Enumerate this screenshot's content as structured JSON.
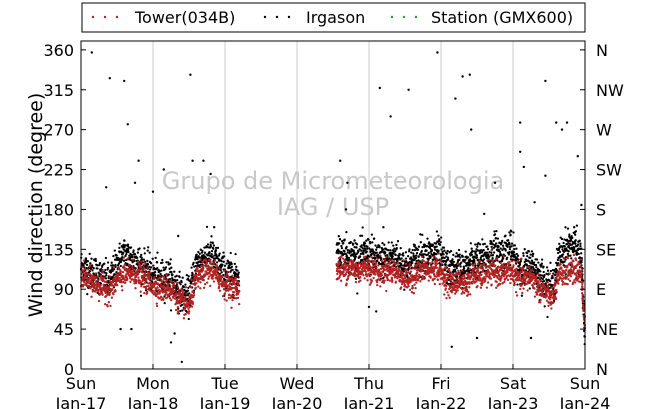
{
  "chart_data": {
    "type": "scatter",
    "title": "",
    "ylabel": "Wind direction (degree)",
    "xlabel": "",
    "ylim": [
      0,
      370
    ],
    "xlim_days": [
      0,
      7
    ],
    "grid": "vertical lines at each day",
    "legend_position": "top",
    "watermark": [
      "Grupo de Micrometeorologia",
      "IAG / USP"
    ],
    "x_ticks": [
      {
        "day": 0,
        "top": "Sun",
        "bottom": "Jan-17"
      },
      {
        "day": 1,
        "top": "Mon",
        "bottom": "Jan-18"
      },
      {
        "day": 2,
        "top": "Tue",
        "bottom": "Jan-19"
      },
      {
        "day": 3,
        "top": "Wed",
        "bottom": "Jan-20"
      },
      {
        "day": 4,
        "top": "Thu",
        "bottom": "Jan-21"
      },
      {
        "day": 5,
        "top": "Fri",
        "bottom": "Jan-22"
      },
      {
        "day": 6,
        "top": "Sat",
        "bottom": "Jan-23"
      },
      {
        "day": 7,
        "top": "Sun",
        "bottom": "Jan-24"
      }
    ],
    "y_ticks": [
      "0",
      "45",
      "90",
      "135",
      "180",
      "225",
      "270",
      "315",
      "360"
    ],
    "y_tick_values": [
      0,
      45,
      90,
      135,
      180,
      225,
      270,
      315,
      360
    ],
    "compass_ticks": [
      "N",
      "NE",
      "E",
      "SE",
      "S",
      "SW",
      "W",
      "NW",
      "N"
    ],
    "series": [
      {
        "name": "Tower(034B)",
        "color": "#b22222",
        "segments": [
          {
            "x_days": [
              0.0,
              0.1,
              0.2,
              0.3,
              0.4,
              0.5,
              0.6,
              0.7,
              0.8,
              0.9,
              1.0,
              1.1,
              1.2,
              1.3,
              1.4,
              1.5,
              1.6,
              1.7,
              1.8,
              1.9,
              2.0,
              2.1,
              2.2
            ],
            "y": [
              106,
              100,
              96,
              92,
              88,
              100,
              105,
              108,
              106,
              100,
              95,
              90,
              92,
              85,
              75,
              70,
              100,
              108,
              112,
              104,
              95,
              92,
              90
            ]
          },
          {
            "x_days": [
              3.55,
              3.65,
              3.75,
              3.85,
              3.95,
              4.05,
              4.15,
              4.25,
              4.35,
              4.45,
              4.55,
              4.65,
              4.75,
              4.85,
              4.95,
              5.05,
              5.15,
              5.25,
              5.35,
              5.45,
              5.55,
              5.65,
              5.75,
              5.85,
              5.95,
              6.05,
              6.15,
              6.25,
              6.35,
              6.45,
              6.55,
              6.65,
              6.75,
              6.85,
              6.95,
              7.0
            ],
            "y": [
              113,
              112,
              114,
              110,
              115,
              112,
              108,
              112,
              110,
              105,
              100,
              106,
              112,
              110,
              114,
              103,
              95,
              100,
              95,
              106,
              104,
              108,
              110,
              106,
              112,
              104,
              100,
              105,
              92,
              86,
              80,
              105,
              110,
              112,
              108,
              45
            ]
          }
        ]
      },
      {
        "name": "Irgason",
        "color": "#000000",
        "segments": [
          {
            "x_days": [
              0.0,
              0.1,
              0.2,
              0.3,
              0.4,
              0.5,
              0.6,
              0.7,
              0.8,
              0.9,
              1.0,
              1.1,
              1.2,
              1.3,
              1.4,
              1.5,
              1.6,
              1.7,
              1.8,
              1.9,
              2.0,
              2.1,
              2.2
            ],
            "y": [
              116,
              110,
              108,
              102,
              98,
              118,
              130,
              125,
              120,
              112,
              106,
              102,
              104,
              96,
              84,
              82,
              118,
              125,
              130,
              118,
              108,
              106,
              105
            ]
          },
          {
            "x_days": [
              3.55,
              3.65,
              3.75,
              3.85,
              3.95,
              4.05,
              4.15,
              4.25,
              4.35,
              4.45,
              4.55,
              4.65,
              4.75,
              4.85,
              4.95,
              5.05,
              5.15,
              5.25,
              5.35,
              5.45,
              5.55,
              5.65,
              5.75,
              5.85,
              5.95,
              6.05,
              6.15,
              6.25,
              6.35,
              6.45,
              6.55,
              6.65,
              6.75,
              6.85,
              6.95,
              7.0
            ],
            "y": [
              130,
              132,
              128,
              125,
              130,
              128,
              122,
              125,
              126,
              120,
              115,
              125,
              130,
              128,
              132,
              118,
              110,
              115,
              112,
              125,
              122,
              128,
              135,
              130,
              138,
              120,
              112,
              118,
              108,
              98,
              92,
              128,
              138,
              140,
              125,
              30
            ]
          }
        ],
        "outliers": {
          "x_days": [
            0.15,
            0.35,
            0.4,
            0.6,
            0.8,
            0.75,
            0.65,
            0.7,
            1.15,
            1.35,
            1.52,
            1.55,
            0.55,
            1.7,
            1.8,
            1.85,
            1.0,
            1.25,
            1.4,
            1.3,
            3.7,
            3.6,
            3.68,
            3.8,
            4.15,
            4.3,
            4.2,
            4.55,
            4.38,
            4.95,
            5.2,
            5.15,
            5.3,
            5.4,
            5.42,
            5.6,
            5.75,
            6.1,
            6.1,
            6.15,
            6.3,
            6.45,
            6.45,
            6.6,
            6.68,
            6.75,
            6.85,
            6.95,
            6.9,
            4.0,
            5.5,
            6.25,
            4.1
          ],
          "y": [
            357,
            205,
            328,
            325,
            235,
            210,
            276,
            45,
            225,
            150,
            332,
            235,
            45,
            235,
            220,
            160,
            200,
            30,
            8,
            40,
            210,
            235,
            180,
            145,
            317,
            285,
            160,
            315,
            140,
            357,
            305,
            25,
            330,
            332,
            270,
            175,
            210,
            278,
            245,
            228,
            188,
            218,
            325,
            278,
            270,
            278,
            160,
            185,
            240,
            70,
            35,
            35,
            65
          ]
        }
      },
      {
        "name": "Station (GMX600)",
        "color": "#2ca02c",
        "segments": []
      }
    ]
  }
}
